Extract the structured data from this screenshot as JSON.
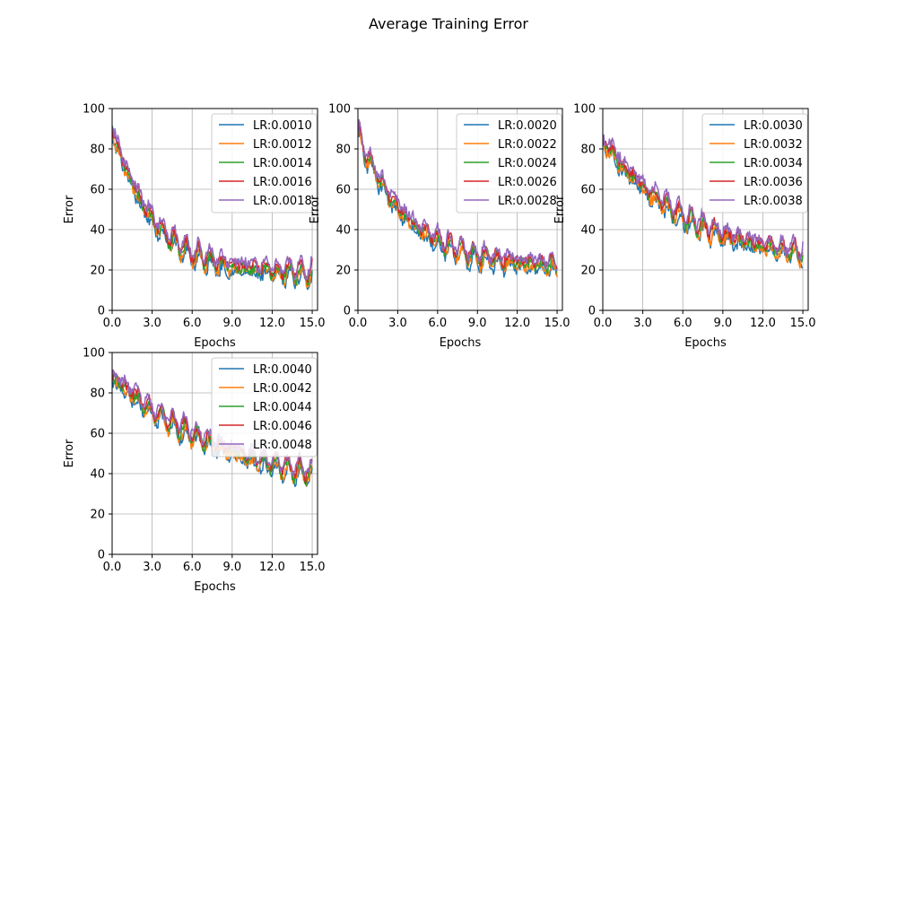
{
  "figure": {
    "title": "Average Training Error"
  },
  "colors": {
    "axis": "#000000",
    "grid": "#b0b0b0",
    "legend_border": "#cccccc"
  },
  "chart_data": [
    {
      "type": "line",
      "title": "",
      "xlabel": "Epochs",
      "ylabel": "Error",
      "xlim": [
        0,
        15.4
      ],
      "ylim": [
        0,
        100
      ],
      "xticks": [
        "0.0",
        "3.0",
        "6.0",
        "9.0",
        "12.0",
        "15.0"
      ],
      "yticks": [
        "0",
        "20",
        "40",
        "60",
        "80",
        "100"
      ],
      "grid": true,
      "legend": "top-right",
      "start": 90,
      "end": 18,
      "rate": 0.28,
      "series": [
        {
          "name": "LR:0.0010",
          "color": "#1f77b4"
        },
        {
          "name": "LR:0.0012",
          "color": "#ff7f0e"
        },
        {
          "name": "LR:0.0014",
          "color": "#2ca02c"
        },
        {
          "name": "LR:0.0016",
          "color": "#d62728"
        },
        {
          "name": "LR:0.0018",
          "color": "#9467bd"
        }
      ]
    },
    {
      "type": "line",
      "title": "",
      "xlabel": "Epochs",
      "ylabel": "Error",
      "xlim": [
        0,
        15.4
      ],
      "ylim": [
        0,
        100
      ],
      "xticks": [
        "0.0",
        "3.0",
        "6.0",
        "9.0",
        "12.0",
        "15.0"
      ],
      "yticks": [
        "0",
        "20",
        "40",
        "60",
        "80",
        "100"
      ],
      "grid": true,
      "legend": "top-right",
      "start": 88,
      "end": 21,
      "rate": 0.23,
      "series": [
        {
          "name": "LR:0.0020",
          "color": "#1f77b4"
        },
        {
          "name": "LR:0.0022",
          "color": "#ff7f0e"
        },
        {
          "name": "LR:0.0024",
          "color": "#2ca02c"
        },
        {
          "name": "LR:0.0026",
          "color": "#d62728"
        },
        {
          "name": "LR:0.0028",
          "color": "#9467bd"
        }
      ]
    },
    {
      "type": "line",
      "title": "",
      "xlabel": "Epochs",
      "ylabel": "Error",
      "xlim": [
        0,
        15.4
      ],
      "ylim": [
        0,
        100
      ],
      "xticks": [
        "0.0",
        "3.0",
        "6.0",
        "9.0",
        "12.0",
        "15.0"
      ],
      "yticks": [
        "0",
        "20",
        "40",
        "60",
        "80",
        "100"
      ],
      "grid": true,
      "legend": "top-right",
      "start": 85,
      "end": 23,
      "rate": 0.14,
      "series": [
        {
          "name": "LR:0.0030",
          "color": "#1f77b4"
        },
        {
          "name": "LR:0.0032",
          "color": "#ff7f0e"
        },
        {
          "name": "LR:0.0034",
          "color": "#2ca02c"
        },
        {
          "name": "LR:0.0036",
          "color": "#d62728"
        },
        {
          "name": "LR:0.0038",
          "color": "#9467bd"
        }
      ]
    },
    {
      "type": "line",
      "title": "",
      "xlabel": "Epochs",
      "ylabel": "Error",
      "xlim": [
        0,
        15.4
      ],
      "ylim": [
        0,
        100
      ],
      "xticks": [
        "0.0",
        "3.0",
        "6.0",
        "9.0",
        "12.0",
        "15.0"
      ],
      "yticks": [
        "0",
        "20",
        "40",
        "60",
        "80",
        "100"
      ],
      "grid": true,
      "legend": "top-right",
      "start": 88,
      "end": 27,
      "rate": 0.09,
      "series": [
        {
          "name": "LR:0.0040",
          "color": "#1f77b4"
        },
        {
          "name": "LR:0.0042",
          "color": "#ff7f0e"
        },
        {
          "name": "LR:0.0044",
          "color": "#2ca02c"
        },
        {
          "name": "LR:0.0046",
          "color": "#d62728"
        },
        {
          "name": "LR:0.0048",
          "color": "#9467bd"
        }
      ]
    }
  ]
}
